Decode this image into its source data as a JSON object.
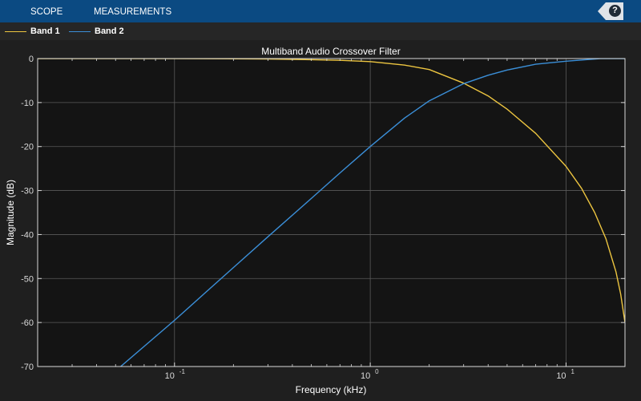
{
  "toolstrip": {
    "tabs": [
      {
        "label": "SCOPE"
      },
      {
        "label": "MEASUREMENTS"
      }
    ],
    "help_label": "?"
  },
  "legend": {
    "items": [
      {
        "label": "Band 1",
        "color": "#edc540"
      },
      {
        "label": "Band 2",
        "color": "#3b8fd8"
      }
    ]
  },
  "colors": {
    "toolstrip": "#0b4a82",
    "plot_bg": "#141414",
    "grid": "#5a5a5a",
    "axis": "#d9d9d9"
  },
  "chart_data": {
    "type": "line",
    "title": "Multiband Audio Crossover Filter",
    "xlabel": "Frequency (kHz)",
    "ylabel": "Magnitude (dB)",
    "xscale": "log",
    "xlim": [
      0.02,
      20
    ],
    "ylim": [
      -70,
      0
    ],
    "xticks": [
      {
        "v": 0.1,
        "mant": "10",
        "exp": "-1"
      },
      {
        "v": 1,
        "mant": "10",
        "exp": "0"
      },
      {
        "v": 10,
        "mant": "10",
        "exp": "1"
      }
    ],
    "yticks": [
      0,
      -10,
      -20,
      -30,
      -40,
      -50,
      -60,
      -70
    ],
    "grid": true,
    "series": [
      {
        "name": "Band 1",
        "color": "#edc540",
        "x": [
          0.02,
          0.05,
          0.1,
          0.2,
          0.3,
          0.5,
          0.7,
          1,
          1.5,
          2,
          3,
          4,
          5,
          7,
          10,
          12,
          14,
          16,
          18,
          19,
          20
        ],
        "y": [
          0,
          0,
          -0.02,
          -0.05,
          -0.1,
          -0.25,
          -0.4,
          -0.7,
          -1.5,
          -2.5,
          -5.6,
          -8.5,
          -11.5,
          -17,
          -24.5,
          -29.5,
          -35,
          -41,
          -48.5,
          -53.5,
          -60
        ]
      },
      {
        "name": "Band 2",
        "color": "#3b8fd8",
        "x": [
          0.05,
          0.1,
          0.2,
          0.3,
          0.5,
          0.7,
          1,
          1.5,
          2,
          3,
          4,
          5,
          7,
          10,
          15,
          20
        ],
        "y": [
          -71,
          -59.5,
          -47.5,
          -40.5,
          -31.8,
          -26,
          -20,
          -13.5,
          -9.6,
          -5.7,
          -3.8,
          -2.6,
          -1.3,
          -0.6,
          0,
          0
        ]
      }
    ]
  }
}
